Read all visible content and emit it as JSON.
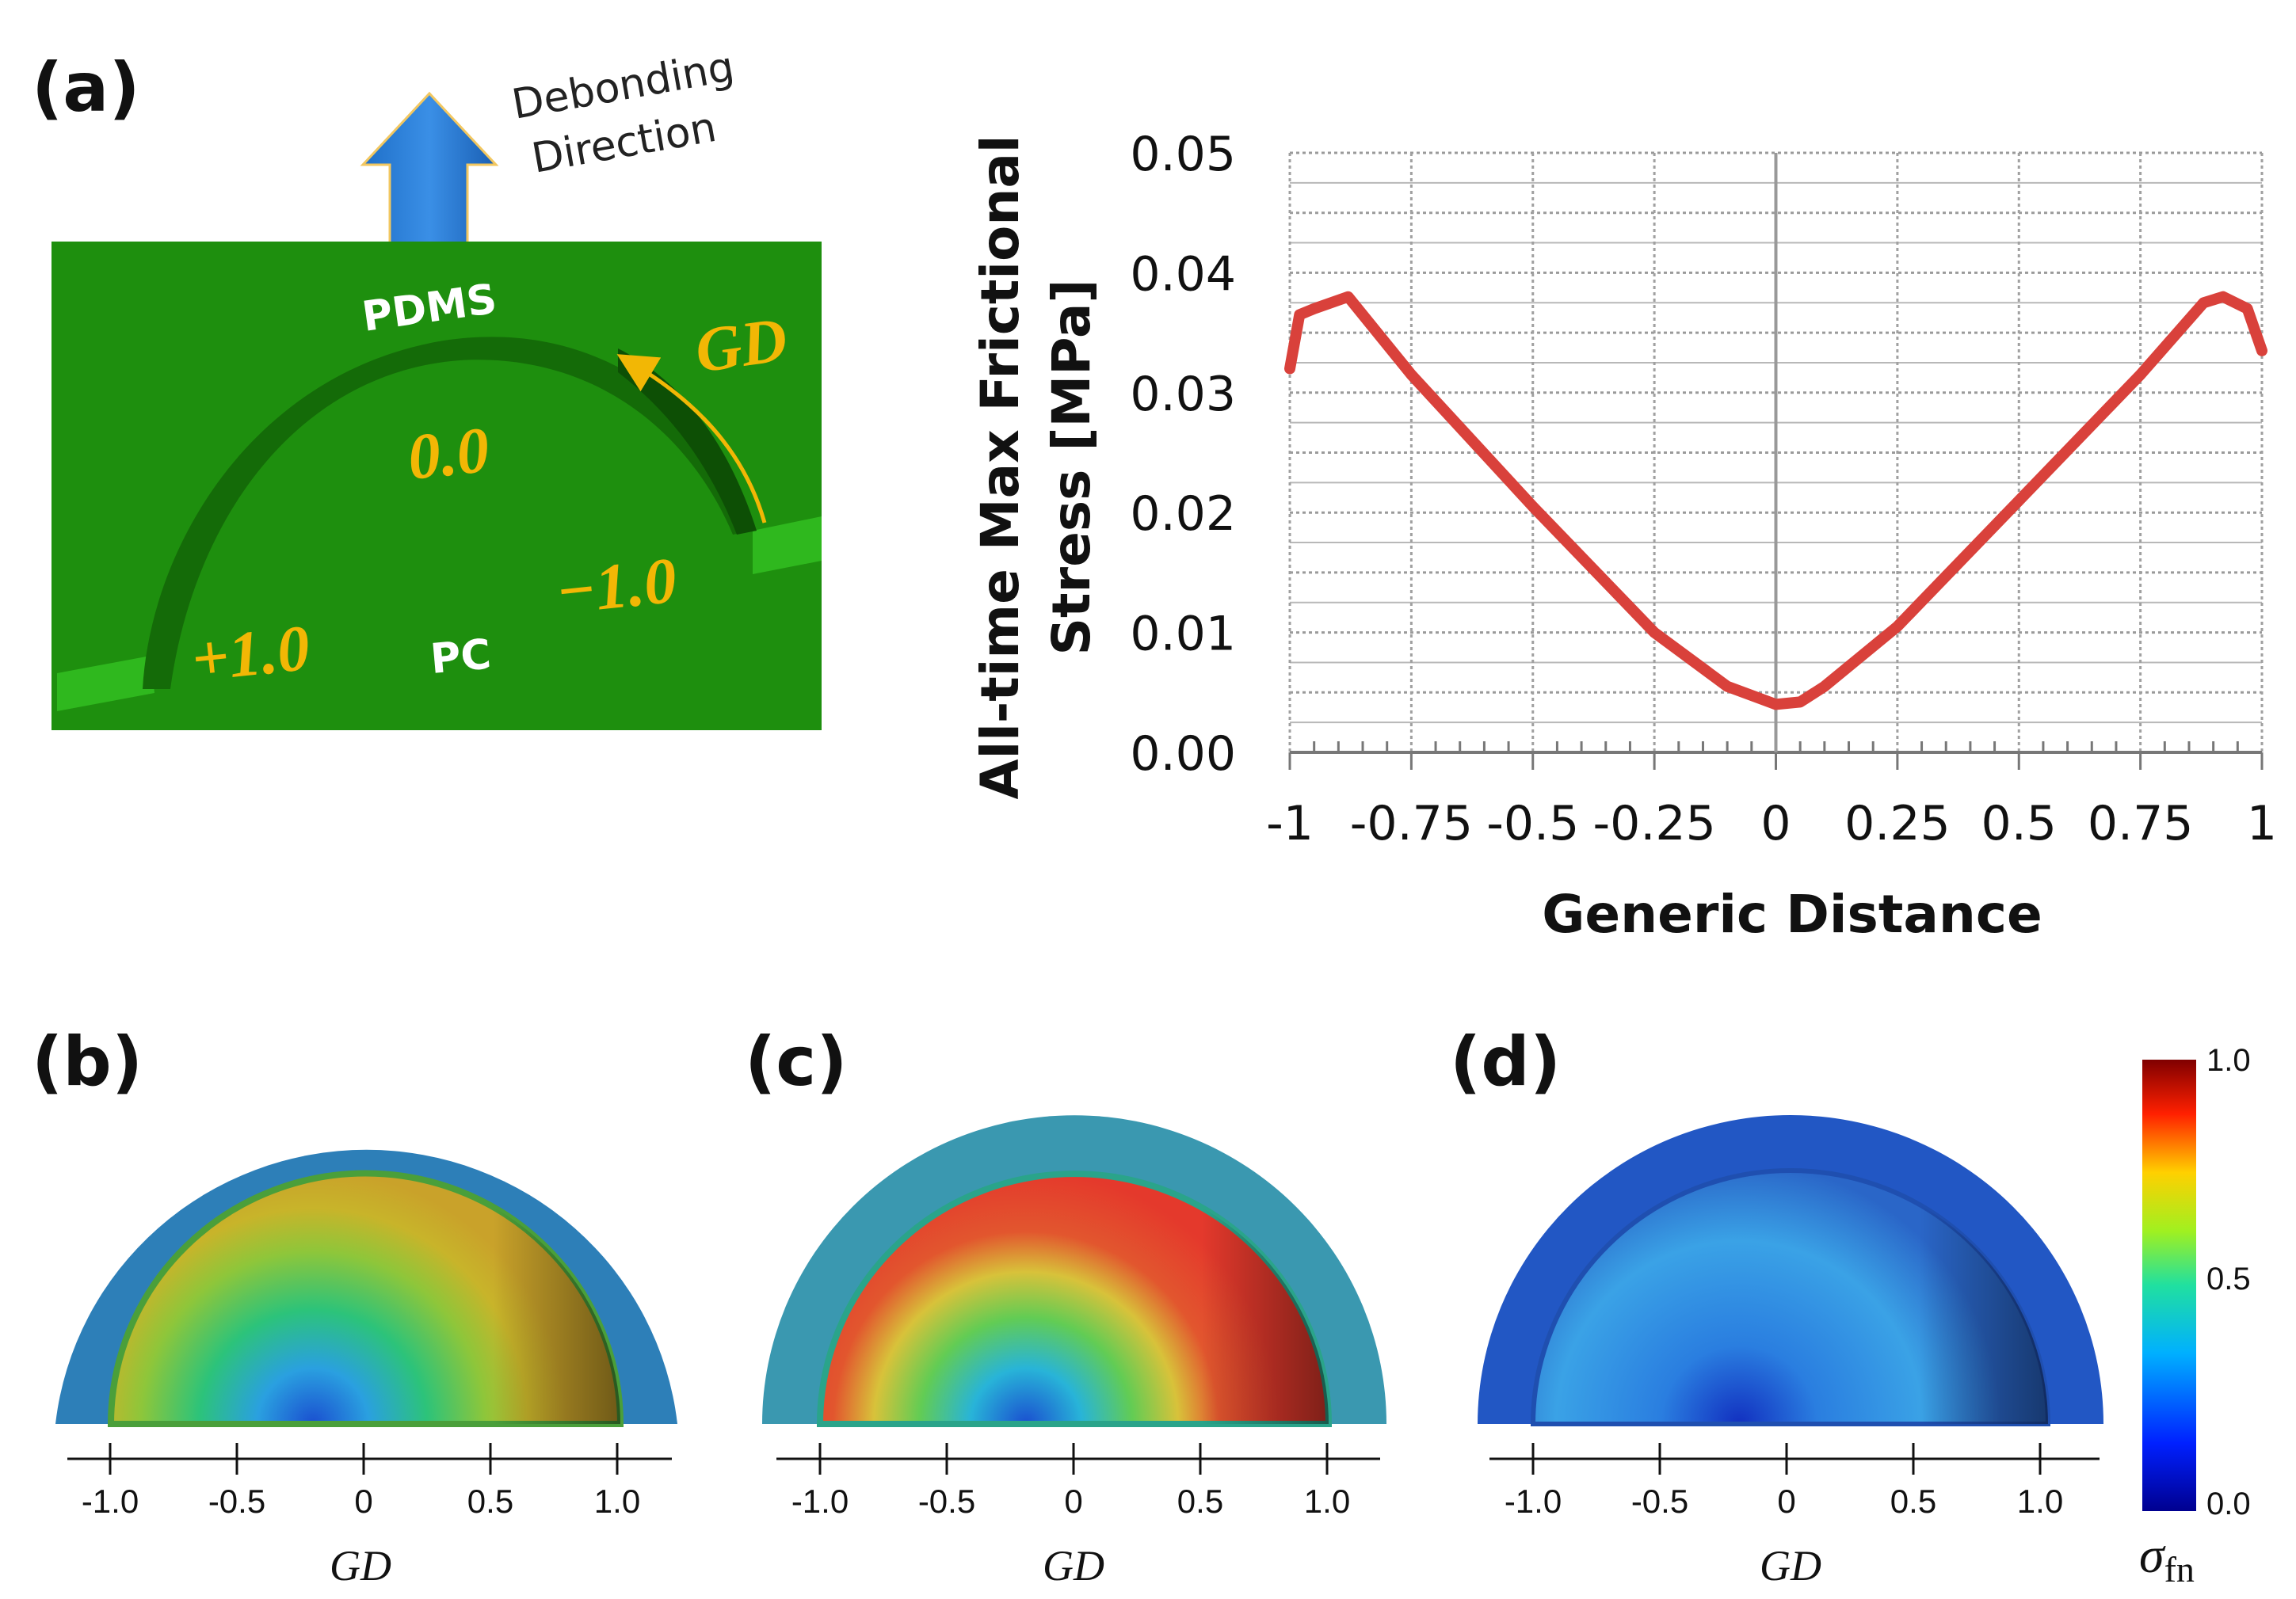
{
  "panel_a": {
    "label": "(a)",
    "debonding_line1": "Debonding",
    "debonding_line2": "Direction",
    "pdms": "PDMS",
    "pc": "PC",
    "gd": "GD",
    "pos_zero": "0.0",
    "pos_minus": "−1.0",
    "pos_plus": "+1.0",
    "colors": {
      "green": "#1e8f0e",
      "gold": "#f2b705",
      "arrow": "#2f7fd6"
    }
  },
  "panels_bcd": [
    {
      "label": "(b)",
      "xlabel": "GD",
      "ticks": [
        "-1.0",
        "-0.5",
        "0",
        "0.5",
        "1.0"
      ]
    },
    {
      "label": "(c)",
      "xlabel": "GD",
      "ticks": [
        "-1.0",
        "-0.5",
        "0",
        "0.5",
        "1.0"
      ]
    },
    {
      "label": "(d)",
      "xlabel": "GD",
      "ticks": [
        "-1.0",
        "-0.5",
        "0",
        "0.5",
        "1.0"
      ]
    }
  ],
  "colorbar": {
    "max_label": "1.0",
    "mid_label": "0.5",
    "min_label": "0.0",
    "symbol": "σ",
    "subscript": "fn"
  },
  "chart_data": {
    "type": "line",
    "title": "",
    "xlabel": "Generic Distance",
    "ylabel_line1": "All-time Max Frictional",
    "ylabel_line2": "Stress [MPa]",
    "xlim": [
      -1,
      1
    ],
    "ylim": [
      0,
      0.05
    ],
    "grid": true,
    "x_tick_labels": [
      "-1",
      "-0.75",
      "-0.5",
      "-0.25",
      "0",
      "0.25",
      "0.5",
      "0.75",
      "1"
    ],
    "y_tick_labels": [
      "0.00",
      "0.01",
      "0.02",
      "0.03",
      "0.04",
      "0.05"
    ],
    "series": [
      {
        "name": "frictional stress",
        "color": "#d9413b",
        "x": [
          -1.0,
          -0.98,
          -0.95,
          -0.88,
          -0.75,
          -0.5,
          -0.25,
          -0.1,
          0.0,
          0.05,
          0.1,
          0.25,
          0.5,
          0.75,
          0.88,
          0.92,
          0.97,
          1.0
        ],
        "y": [
          0.032,
          0.0365,
          0.037,
          0.038,
          0.0315,
          0.0205,
          0.01,
          0.0055,
          0.004,
          0.0042,
          0.0055,
          0.0105,
          0.021,
          0.0315,
          0.0375,
          0.038,
          0.037,
          0.0335
        ]
      }
    ]
  }
}
